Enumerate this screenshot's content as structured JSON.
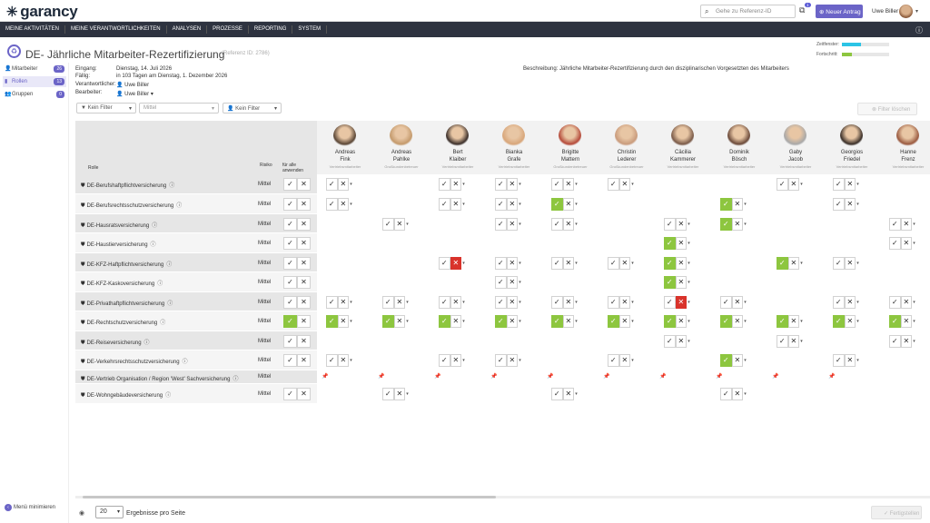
{
  "app": {
    "logo": "garancy",
    "search_placeholder": "Gehe zu Referenz-ID",
    "notif_count": "1",
    "new_request": "Neuer Antrag",
    "user": "Uwe Biller"
  },
  "nav": [
    "MEINE AKTIVITÄTEN",
    "MEINE VERANTWORTLICHKEITEN",
    "ANALYSEN",
    "PROZESSE",
    "REPORTING",
    "SYSTEM"
  ],
  "page": {
    "title": "DE- Jährliche Mitarbeiter-Rezertifizierung",
    "ref": "(Referenz ID: 2786)",
    "time_label": "Zeitfenster:",
    "time_value": 0.4,
    "progress_label": "Fortschritt:",
    "progress_value": 0.22
  },
  "sidebar": [
    {
      "label": "Mitarbeiter",
      "count": "26"
    },
    {
      "label": "Rollen",
      "count": "13"
    },
    {
      "label": "Gruppen",
      "count": "0"
    }
  ],
  "minimize": "Menü minimieren",
  "meta": {
    "eingang_label": "Eingang:",
    "eingang": "Dienstag, 14. Juli 2026",
    "faellig_label": "Fällig:",
    "faellig": "in 103 Tagen am Dienstag, 1. Dezember 2026",
    "verantwortlich_label": "Verantwortlicher:",
    "verantwortlich": "Uwe Biller",
    "bearbeiter_label": "Bearbeiter:",
    "bearbeiter": "Uwe Biller",
    "desc_label": "Beschreibung:",
    "desc": "Jährliche Mitarbeiter-Rezertifizierung durch den disziplinarischen Vorgesetzten des Mitarbeiters"
  },
  "filters": {
    "f1": "Kein Filter",
    "f2": "Mittel",
    "f3": "Kein Filter",
    "clear": "Filter löschen"
  },
  "grid": {
    "col_role": "Rolle",
    "col_risk": "Risiko",
    "col_all": "für alle anwenden"
  },
  "people": [
    {
      "first": "Andreas",
      "last": "Fink",
      "role": "Vertriebsmitarbeiter"
    },
    {
      "first": "Andreas",
      "last": "Pahlke",
      "role": "Großkundenbetreuer"
    },
    {
      "first": "Bert",
      "last": "Klaiber",
      "role": "Vertriebsmitarbeiter"
    },
    {
      "first": "Bianka",
      "last": "Grafe",
      "role": "Vertriebsmitarbeiter"
    },
    {
      "first": "Brigitte",
      "last": "Mattern",
      "role": "Großkundenbetreuer"
    },
    {
      "first": "Christin",
      "last": "Lederer",
      "role": "Großkundenbetreuer"
    },
    {
      "first": "Cäcilia",
      "last": "Kammerer",
      "role": "Vertriebsmitarbeiter"
    },
    {
      "first": "Dominik",
      "last": "Bösch",
      "role": "Vertriebsmitarbeiter"
    },
    {
      "first": "Gaby",
      "last": "Jacob",
      "role": "Vertriebsmitarbeiter"
    },
    {
      "first": "Georgios",
      "last": "Friedel",
      "role": "Vertriebsmitarbeiter"
    },
    {
      "first": "Hanne",
      "last": "Frenz",
      "role": "Vertriebsmitarbeiter"
    }
  ],
  "roles": [
    {
      "name": "DE-Berufshaftpflichtversicherung",
      "risk": "Mittel",
      "all": "c",
      "cells": [
        "c",
        "",
        "c",
        "c",
        "c",
        "c",
        "",
        "",
        "c",
        "c",
        ""
      ]
    },
    {
      "name": "DE-Berufsrechtsschutzversicherung",
      "risk": "Mittel",
      "all": "c",
      "cells": [
        "c",
        "",
        "c",
        "c",
        "ok",
        "",
        "",
        "ok",
        "",
        "c",
        ""
      ]
    },
    {
      "name": "DE-Hausratsversicherung",
      "risk": "Mittel",
      "all": "c",
      "cells": [
        "",
        "c",
        "",
        "c",
        "c",
        "",
        "c",
        "ok",
        "",
        "",
        "c"
      ]
    },
    {
      "name": "DE-Haustierversicherung",
      "risk": "Mittel",
      "all": "c",
      "cells": [
        "",
        "",
        "",
        "",
        "",
        "",
        "ok",
        "",
        "",
        "",
        "c"
      ]
    },
    {
      "name": "DE-KFZ-Haftpflichtversicherung",
      "risk": "Mittel",
      "all": "c",
      "cells": [
        "",
        "",
        "no",
        "c",
        "c",
        "c",
        "ok",
        "",
        "ok",
        "c",
        ""
      ]
    },
    {
      "name": "DE-KFZ-Kaskoversicherung",
      "risk": "Mittel",
      "all": "c",
      "cells": [
        "",
        "",
        "",
        "c",
        "",
        "",
        "ok",
        "",
        "",
        "",
        ""
      ]
    },
    {
      "name": "DE-Privathaftpflichtversicherung",
      "risk": "Mittel",
      "all": "c",
      "cells": [
        "c",
        "c",
        "c",
        "c",
        "c",
        "c",
        "no",
        "c",
        "",
        "c",
        "c"
      ]
    },
    {
      "name": "DE-Rechtschutzversicherung",
      "risk": "Mittel",
      "all": "ok",
      "cells": [
        "ok",
        "ok",
        "ok",
        "ok",
        "ok",
        "ok",
        "ok",
        "ok",
        "ok",
        "ok",
        "ok"
      ]
    },
    {
      "name": "DE-Reiseversicherung",
      "risk": "Mittel",
      "all": "c",
      "cells": [
        "",
        "",
        "",
        "",
        "",
        "",
        "c",
        "",
        "c",
        "",
        "c"
      ]
    },
    {
      "name": "DE-Verkehrsrechtsschutzversicherung",
      "risk": "Mittel",
      "all": "c",
      "cells": [
        "c",
        "",
        "c",
        "c",
        "",
        "c",
        "",
        "ok",
        "",
        "c",
        ""
      ]
    },
    {
      "name": "DE-Vertrieb Organisation / Region 'West' Sachversicherung",
      "risk": "Mittel",
      "all": "",
      "cells": [
        "p",
        "p",
        "p",
        "p",
        "p",
        "p",
        "p",
        "p",
        "p",
        "p",
        ""
      ]
    },
    {
      "name": "DE-Wohngebäudeversicherung",
      "risk": "Mittel",
      "all": "c",
      "cells": [
        "",
        "c",
        "",
        "",
        "c",
        "",
        "",
        "c",
        "",
        "",
        ""
      ]
    }
  ],
  "footer": {
    "page_size": "20",
    "per_page": "Ergebnisse pro Seite",
    "finish": "Fertigstellen"
  }
}
